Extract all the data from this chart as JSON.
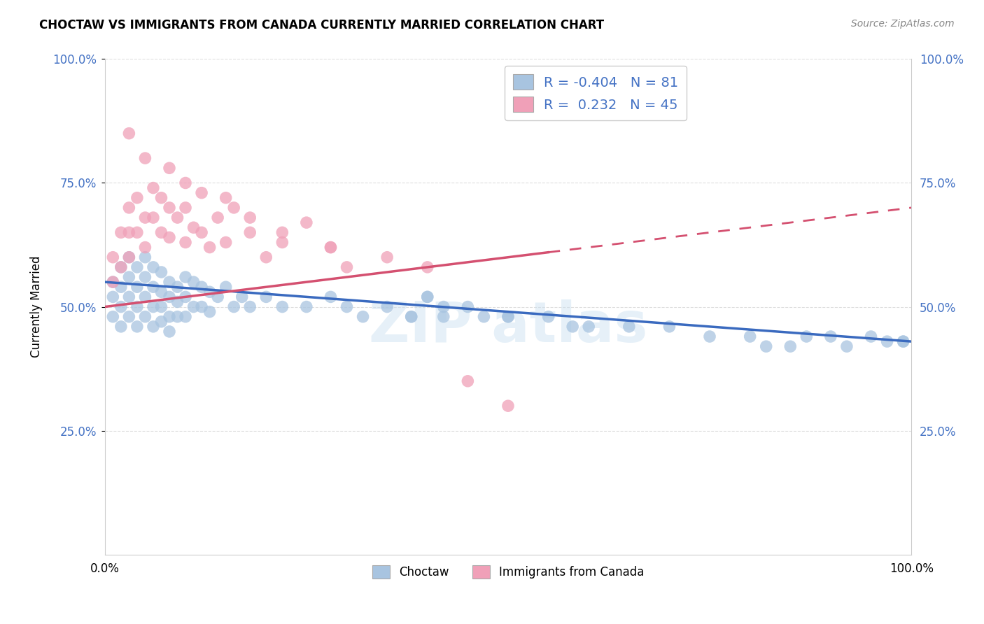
{
  "title": "CHOCTAW VS IMMIGRANTS FROM CANADA CURRENTLY MARRIED CORRELATION CHART",
  "source": "Source: ZipAtlas.com",
  "ylabel": "Currently Married",
  "r_blue": -0.404,
  "n_blue": 81,
  "r_pink": 0.232,
  "n_pink": 45,
  "blue_color": "#a8c4e0",
  "pink_color": "#f0a0b8",
  "blue_line_color": "#3a6abf",
  "pink_line_color": "#d45070",
  "xlim": [
    0,
    100
  ],
  "ylim": [
    0,
    100
  ],
  "ytick_positions": [
    25,
    50,
    75,
    100
  ],
  "ytick_labels": [
    "25.0%",
    "50.0%",
    "75.0%",
    "100.0%"
  ],
  "xtick_positions": [
    0,
    100
  ],
  "xtick_labels": [
    "0.0%",
    "100.0%"
  ],
  "background_color": "#ffffff",
  "grid_color": "#dddddd",
  "blue_line_start_y": 55,
  "blue_line_end_y": 43,
  "pink_line_start_y": 50,
  "pink_line_end_y": 70,
  "blue_scatter_x": [
    1,
    1,
    1,
    2,
    2,
    2,
    2,
    3,
    3,
    3,
    3,
    4,
    4,
    4,
    4,
    5,
    5,
    5,
    5,
    6,
    6,
    6,
    6,
    7,
    7,
    7,
    7,
    8,
    8,
    8,
    8,
    9,
    9,
    9,
    10,
    10,
    10,
    11,
    11,
    12,
    12,
    13,
    13,
    14,
    15,
    16,
    17,
    18,
    20,
    22,
    25,
    28,
    30,
    32,
    35,
    38,
    40,
    42,
    45,
    47,
    50,
    55,
    58,
    60,
    65,
    70,
    75,
    80,
    82,
    85,
    87,
    90,
    92,
    95,
    97,
    99,
    99,
    40,
    38,
    42,
    50
  ],
  "blue_scatter_y": [
    55,
    52,
    48,
    58,
    54,
    50,
    46,
    60,
    56,
    52,
    48,
    58,
    54,
    50,
    46,
    60,
    56,
    52,
    48,
    58,
    54,
    50,
    46,
    57,
    53,
    50,
    47,
    55,
    52,
    48,
    45,
    54,
    51,
    48,
    56,
    52,
    48,
    55,
    50,
    54,
    50,
    53,
    49,
    52,
    54,
    50,
    52,
    50,
    52,
    50,
    50,
    52,
    50,
    48,
    50,
    48,
    52,
    48,
    50,
    48,
    48,
    48,
    46,
    46,
    46,
    46,
    44,
    44,
    42,
    42,
    44,
    44,
    42,
    44,
    43,
    43,
    43,
    52,
    48,
    50,
    48
  ],
  "pink_scatter_x": [
    1,
    1,
    2,
    2,
    3,
    3,
    3,
    4,
    4,
    5,
    5,
    6,
    6,
    7,
    7,
    8,
    8,
    9,
    10,
    10,
    11,
    12,
    13,
    14,
    15,
    16,
    18,
    20,
    22,
    25,
    28,
    30,
    3,
    5,
    8,
    10,
    12,
    15,
    18,
    22,
    28,
    35,
    40,
    45,
    50
  ],
  "pink_scatter_y": [
    60,
    55,
    65,
    58,
    70,
    65,
    60,
    72,
    65,
    68,
    62,
    74,
    68,
    72,
    65,
    70,
    64,
    68,
    70,
    63,
    66,
    65,
    62,
    68,
    63,
    70,
    65,
    60,
    63,
    67,
    62,
    58,
    85,
    80,
    78,
    75,
    73,
    72,
    68,
    65,
    62,
    60,
    58,
    35,
    30
  ]
}
